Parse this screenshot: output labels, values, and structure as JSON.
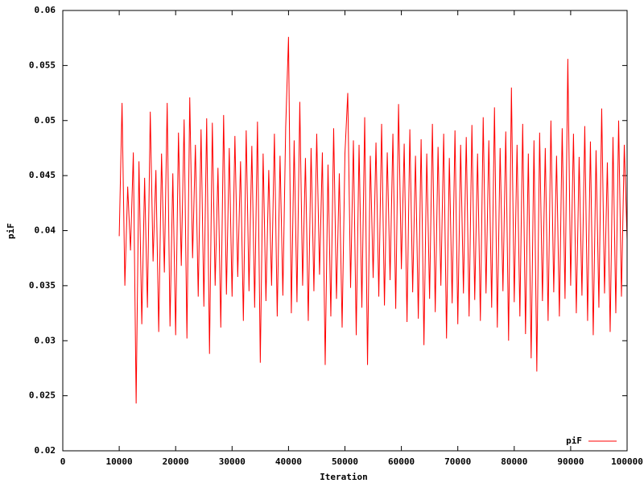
{
  "chart_data": {
    "type": "line",
    "xlabel": "Iteration",
    "ylabel": "piF",
    "xlim": [
      0,
      100000
    ],
    "xticks": [
      0,
      10000,
      20000,
      30000,
      40000,
      50000,
      60000,
      70000,
      80000,
      90000,
      100000
    ],
    "ylim": [
      0.02,
      0.06
    ],
    "yticks": [
      0.02,
      0.025,
      0.03,
      0.035,
      0.04,
      0.045,
      0.05,
      0.055,
      0.06
    ],
    "legend": "lower right",
    "x": [
      10000,
      10500,
      11000,
      11500,
      12000,
      12500,
      13000,
      13500,
      14000,
      14500,
      15000,
      15500,
      16000,
      16500,
      17000,
      17500,
      18000,
      18500,
      19000,
      19500,
      20000,
      20500,
      21000,
      21500,
      22000,
      22500,
      23000,
      23500,
      24000,
      24500,
      25000,
      25500,
      26000,
      26500,
      27000,
      27500,
      28000,
      28500,
      29000,
      29500,
      30000,
      30500,
      31000,
      31500,
      32000,
      32500,
      33000,
      33500,
      34000,
      34500,
      35000,
      35500,
      36000,
      36500,
      37000,
      37500,
      38000,
      38500,
      39000,
      39500,
      40000,
      40500,
      41000,
      41500,
      42000,
      42500,
      43000,
      43500,
      44000,
      44500,
      45000,
      45500,
      46000,
      46500,
      47000,
      47500,
      48000,
      48500,
      49000,
      49500,
      50000,
      50500,
      51000,
      51500,
      52000,
      52500,
      53000,
      53500,
      54000,
      54500,
      55000,
      55500,
      56000,
      56500,
      57000,
      57500,
      58000,
      58500,
      59000,
      59500,
      60000,
      60500,
      61000,
      61500,
      62000,
      62500,
      63000,
      63500,
      64000,
      64500,
      65000,
      65500,
      66000,
      66500,
      67000,
      67500,
      68000,
      68500,
      69000,
      69500,
      70000,
      70500,
      71000,
      71500,
      72000,
      72500,
      73000,
      73500,
      74000,
      74500,
      75000,
      75500,
      76000,
      76500,
      77000,
      77500,
      78000,
      78500,
      79000,
      79500,
      80000,
      80500,
      81000,
      81500,
      82000,
      82500,
      83000,
      83500,
      84000,
      84500,
      85000,
      85500,
      86000,
      86500,
      87000,
      87500,
      88000,
      88500,
      89000,
      89500,
      90000,
      90500,
      91000,
      91500,
      92000,
      92500,
      93000,
      93500,
      94000,
      94500,
      95000,
      95500,
      96000,
      96500,
      97000,
      97500,
      98000,
      98500,
      99000,
      99500,
      100000
    ],
    "series": [
      {
        "name": "piF",
        "color": "#ff0000",
        "values": [
          0.0395,
          0.0516,
          0.035,
          0.044,
          0.0382,
          0.0471,
          0.0243,
          0.0463,
          0.0315,
          0.0448,
          0.033,
          0.0508,
          0.0372,
          0.0455,
          0.0308,
          0.047,
          0.0362,
          0.0516,
          0.0313,
          0.0452,
          0.0305,
          0.0489,
          0.0368,
          0.0501,
          0.0302,
          0.0521,
          0.0375,
          0.0478,
          0.034,
          0.0492,
          0.0331,
          0.0502,
          0.0288,
          0.0498,
          0.035,
          0.0457,
          0.0312,
          0.0505,
          0.0342,
          0.0475,
          0.034,
          0.0486,
          0.0358,
          0.0463,
          0.0318,
          0.0491,
          0.0345,
          0.0477,
          0.033,
          0.0499,
          0.028,
          0.047,
          0.0336,
          0.0455,
          0.035,
          0.0488,
          0.0322,
          0.0468,
          0.0341,
          0.0494,
          0.0576,
          0.0325,
          0.0482,
          0.0335,
          0.0517,
          0.035,
          0.0466,
          0.0318,
          0.0475,
          0.0345,
          0.0488,
          0.036,
          0.0471,
          0.0278,
          0.046,
          0.0322,
          0.0493,
          0.0338,
          0.0452,
          0.0312,
          0.047,
          0.0525,
          0.0348,
          0.0482,
          0.0305,
          0.0478,
          0.033,
          0.0503,
          0.0278,
          0.0468,
          0.0357,
          0.048,
          0.034,
          0.0497,
          0.0332,
          0.0471,
          0.0355,
          0.0488,
          0.0329,
          0.0515,
          0.0365,
          0.0479,
          0.0317,
          0.0492,
          0.0344,
          0.0468,
          0.032,
          0.0483,
          0.0296,
          0.047,
          0.0338,
          0.0497,
          0.0326,
          0.0476,
          0.035,
          0.0488,
          0.0302,
          0.0466,
          0.0334,
          0.0491,
          0.0315,
          0.0478,
          0.0343,
          0.0485,
          0.0322,
          0.0496,
          0.0337,
          0.047,
          0.0318,
          0.0503,
          0.0343,
          0.0482,
          0.033,
          0.0512,
          0.0312,
          0.0475,
          0.0345,
          0.049,
          0.03,
          0.053,
          0.0335,
          0.0478,
          0.0322,
          0.0497,
          0.0306,
          0.047,
          0.0284,
          0.0482,
          0.0272,
          0.0489,
          0.0336,
          0.0475,
          0.0318,
          0.05,
          0.0344,
          0.0468,
          0.0322,
          0.0493,
          0.0338,
          0.0556,
          0.035,
          0.0488,
          0.0325,
          0.0467,
          0.0341,
          0.0495,
          0.0318,
          0.0481,
          0.0305,
          0.0473,
          0.033,
          0.0511,
          0.0343,
          0.0462,
          0.0308,
          0.0485,
          0.0325,
          0.05,
          0.034,
          0.0478,
          0.0392
        ]
      }
    ]
  }
}
